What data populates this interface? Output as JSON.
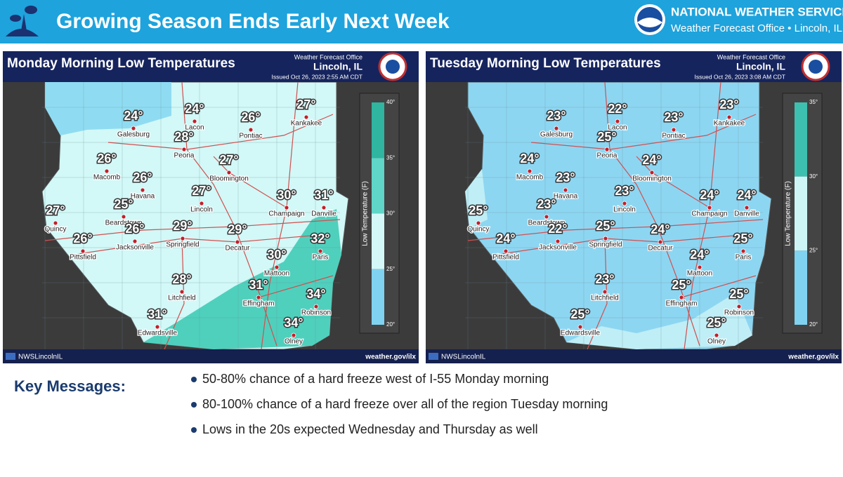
{
  "header": {
    "title": "Growing Season Ends Early Next Week",
    "agency": "NATIONAL WEATHER SERVICE",
    "office": "Weather Forecast Office • Lincoln, IL"
  },
  "maps": [
    {
      "title": "Monday Morning Low Temperatures",
      "office_label": "Weather Forecast Office",
      "location": "Lincoln, IL",
      "issued": "Issued Oct 26, 2023 2:55 AM CDT",
      "legend_title": "Low Temperature (F)",
      "legend_ticks": [
        "40°",
        "35°",
        "30°",
        "25°",
        "20°"
      ],
      "cities": [
        {
          "name": "Galesburg",
          "temp": "24°"
        },
        {
          "name": "Lacon",
          "temp": "24°"
        },
        {
          "name": "Peoria",
          "temp": "28°"
        },
        {
          "name": "Pontiac",
          "temp": "26°"
        },
        {
          "name": "Kankakee",
          "temp": "27°"
        },
        {
          "name": "Macomb",
          "temp": "26°"
        },
        {
          "name": "Havana",
          "temp": "26°"
        },
        {
          "name": "Bloomington",
          "temp": "27°"
        },
        {
          "name": "Lincoln",
          "temp": "27°"
        },
        {
          "name": "Champaign",
          "temp": "30°"
        },
        {
          "name": "Danville",
          "temp": "31°"
        },
        {
          "name": "Quincy",
          "temp": "27°"
        },
        {
          "name": "Beardstown",
          "temp": "25°"
        },
        {
          "name": "Jacksonville",
          "temp": "26°"
        },
        {
          "name": "Springfield",
          "temp": "29°"
        },
        {
          "name": "Decatur",
          "temp": "29°"
        },
        {
          "name": "Pittsfield",
          "temp": "26°"
        },
        {
          "name": "Paris",
          "temp": "32°"
        },
        {
          "name": "Mattoon",
          "temp": "30°"
        },
        {
          "name": "Litchfield",
          "temp": "28°"
        },
        {
          "name": "Effingham",
          "temp": "31°"
        },
        {
          "name": "Robinson",
          "temp": "34°"
        },
        {
          "name": "Edwardsville",
          "temp": "31°"
        },
        {
          "name": "Olney",
          "temp": "34°"
        }
      ],
      "social": "NWSLincolnIL",
      "website": "weather.gov/ilx"
    },
    {
      "title": "Tuesday Morning Low Temperatures",
      "office_label": "Weather Forecast Office",
      "location": "Lincoln, IL",
      "issued": "Issued Oct 26, 2023 3:08 AM CDT",
      "legend_title": "Low Temperature (F)",
      "legend_ticks": [
        "35°",
        "30°",
        "25°",
        "20°"
      ],
      "cities": [
        {
          "name": "Galesburg",
          "temp": "23°"
        },
        {
          "name": "Lacon",
          "temp": "22°"
        },
        {
          "name": "Peoria",
          "temp": "25°"
        },
        {
          "name": "Pontiac",
          "temp": "23°"
        },
        {
          "name": "Kankakee",
          "temp": "23°"
        },
        {
          "name": "Macomb",
          "temp": "24°"
        },
        {
          "name": "Havana",
          "temp": "23°"
        },
        {
          "name": "Bloomington",
          "temp": "24°"
        },
        {
          "name": "Lincoln",
          "temp": "23°"
        },
        {
          "name": "Champaign",
          "temp": "24°"
        },
        {
          "name": "Danville",
          "temp": "24°"
        },
        {
          "name": "Quincy",
          "temp": "25°"
        },
        {
          "name": "Beardstown",
          "temp": "23°"
        },
        {
          "name": "Jacksonville",
          "temp": "22°"
        },
        {
          "name": "Springfield",
          "temp": "25°"
        },
        {
          "name": "Decatur",
          "temp": "24°"
        },
        {
          "name": "Pittsfield",
          "temp": "24°"
        },
        {
          "name": "Paris",
          "temp": "25°"
        },
        {
          "name": "Mattoon",
          "temp": "24°"
        },
        {
          "name": "Litchfield",
          "temp": "23°"
        },
        {
          "name": "Effingham",
          "temp": "25°"
        },
        {
          "name": "Robinson",
          "temp": "25°"
        },
        {
          "name": "Edwardsville",
          "temp": "25°"
        },
        {
          "name": "Olney",
          "temp": "25°"
        }
      ],
      "social": "NWSLincolnIL",
      "website": "weather.gov/ilx"
    }
  ],
  "key_messages": {
    "heading": "Key Messages:",
    "items": [
      "50-80% chance of a hard freeze west of I-55 Monday morning",
      "80-100% chance of a hard freeze over all of the region Tuesday morning",
      "Lows in the 20s expected Wednesday and Thursday as well"
    ]
  }
}
